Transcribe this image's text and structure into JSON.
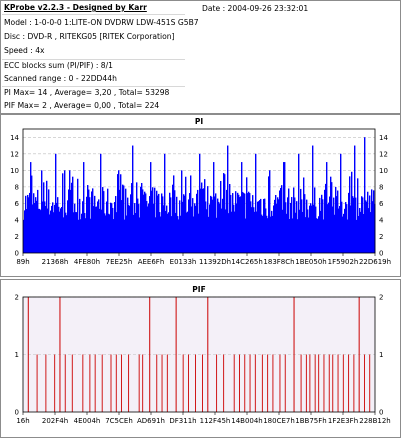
{
  "info": {
    "title": "KProbe v2.2.3 - Designed by Karr",
    "date": "Date : 2004-09-26 23:32:01",
    "lines": [
      "Model : 1-0-0-0 1:LITE-ON DVDRW LDW-451S   G5B7",
      "Disc : DVD-R , RITEKG05 [RITEK Corporation]",
      "Speed : 4x",
      "ECC blocks sum (PI/PIF) : 8/1",
      "Scanned range : 0 - 22DD44h",
      "PI Max= 14 , Average= 3,20 , Total= 53298",
      "PIF Max= 2 , Average= 0,00 , Total= 224"
    ]
  },
  "colors": {
    "pi_bar": "#0000ff",
    "pif_bar": "#cc0000",
    "pif_bg": "#f4f0f8",
    "grid": "#bdbdbd",
    "axis": "#000000"
  },
  "chart_data": [
    {
      "type": "bar",
      "title": "PI",
      "ylim": [
        0,
        15
      ],
      "yticks": [
        0,
        2,
        4,
        6,
        8,
        10,
        12,
        14
      ],
      "grid": true,
      "x_tick_labels": [
        "89h",
        "21368h",
        "4FE80h",
        "7EE25h",
        "AEE6Fh",
        "E0133h",
        "11392Dh",
        "14C265h",
        "183F8Ch",
        "1BE050h",
        "1F5902h",
        "22D619h"
      ],
      "scanned_range": [
        "0",
        "22DD44h"
      ],
      "summary": {
        "max": 14,
        "average": 3.2,
        "total": 53298
      },
      "profile": {
        "base_low": 4,
        "base_high": 8,
        "spikes": [
          [
            0.02,
            11
          ],
          [
            0.05,
            10
          ],
          [
            0.09,
            12
          ],
          [
            0.13,
            10
          ],
          [
            0.17,
            11
          ],
          [
            0.22,
            12
          ],
          [
            0.27,
            10
          ],
          [
            0.31,
            13
          ],
          [
            0.36,
            11
          ],
          [
            0.4,
            12
          ],
          [
            0.45,
            10
          ],
          [
            0.5,
            12
          ],
          [
            0.54,
            11
          ],
          [
            0.58,
            13
          ],
          [
            0.62,
            11
          ],
          [
            0.66,
            12
          ],
          [
            0.7,
            10
          ],
          [
            0.74,
            11
          ],
          [
            0.78,
            12
          ],
          [
            0.82,
            13
          ],
          [
            0.86,
            11
          ],
          [
            0.9,
            12
          ],
          [
            0.94,
            13
          ],
          [
            0.97,
            14
          ]
        ]
      }
    },
    {
      "type": "bar",
      "title": "PIF",
      "ylim": [
        0,
        2
      ],
      "yticks": [
        0,
        1,
        2
      ],
      "grid": true,
      "x_tick_labels": [
        "16h",
        "202F4h",
        "4E004h",
        "7C5CEh",
        "AD691h",
        "DF311h",
        "112F45h",
        "14B004h",
        "180CE7h",
        "1BB75Fh",
        "1F2E3Fh",
        "228B12h"
      ],
      "summary": {
        "max": 2,
        "average": 0.0,
        "total": 224
      },
      "spikes_2": [
        0.015,
        0.105,
        0.36,
        0.435,
        0.525,
        0.77,
        0.955
      ],
      "spikes_1": [
        0.04,
        0.065,
        0.09,
        0.12,
        0.14,
        0.17,
        0.19,
        0.205,
        0.225,
        0.25,
        0.265,
        0.28,
        0.3,
        0.33,
        0.34,
        0.38,
        0.395,
        0.41,
        0.455,
        0.47,
        0.49,
        0.51,
        0.55,
        0.57,
        0.6,
        0.615,
        0.63,
        0.645,
        0.66,
        0.68,
        0.695,
        0.71,
        0.73,
        0.745,
        0.79,
        0.805,
        0.815,
        0.83,
        0.84,
        0.855,
        0.87,
        0.88,
        0.895,
        0.91,
        0.925,
        0.94,
        0.97,
        0.985
      ]
    }
  ]
}
